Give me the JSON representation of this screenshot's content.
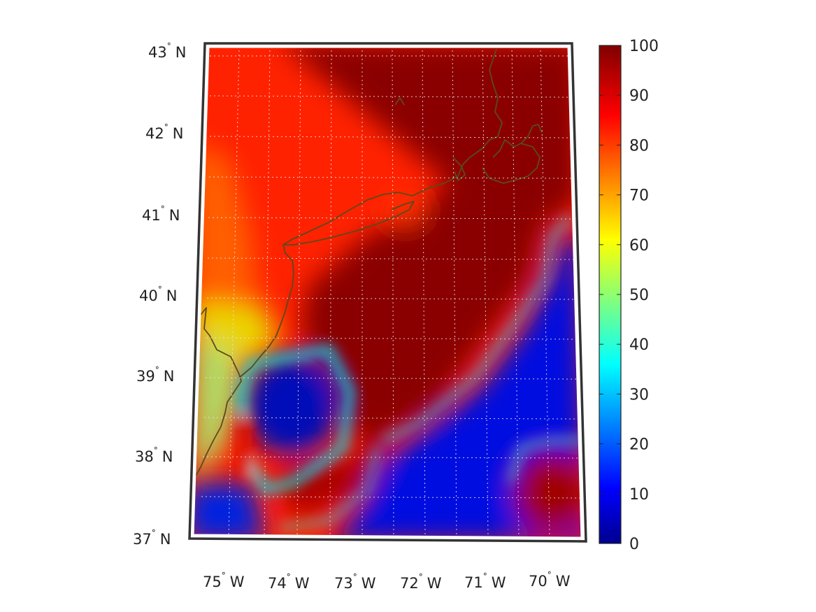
{
  "map": {
    "lat_labels": [
      {
        "deg": "37",
        "hemi": "N"
      },
      {
        "deg": "38",
        "hemi": "N"
      },
      {
        "deg": "39",
        "hemi": "N"
      },
      {
        "deg": "40",
        "hemi": "N"
      },
      {
        "deg": "41",
        "hemi": "N"
      },
      {
        "deg": "42",
        "hemi": "N"
      },
      {
        "deg": "43",
        "hemi": "N"
      }
    ],
    "lon_labels": [
      {
        "deg": "75",
        "hemi": "W"
      },
      {
        "deg": "74",
        "hemi": "W"
      },
      {
        "deg": "73",
        "hemi": "W"
      },
      {
        "deg": "72",
        "hemi": "W"
      },
      {
        "deg": "71",
        "hemi": "W"
      },
      {
        "deg": "70",
        "hemi": "W"
      }
    ],
    "grid": "dotted",
    "coastline_color": "#5a4a1e"
  },
  "colorbar": {
    "colormap": "jet",
    "range": [
      0,
      100
    ],
    "ticks": [
      "0",
      "10",
      "20",
      "30",
      "40",
      "50",
      "60",
      "70",
      "80",
      "90",
      "100"
    ]
  }
}
